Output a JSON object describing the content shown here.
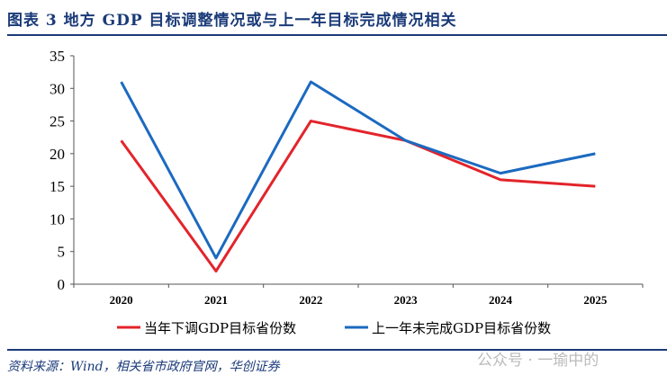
{
  "title": "图表 3   地方 GDP 目标调整情况或与上一年目标完成情况相关",
  "source": "资料来源：Wind，相关省市政府官网，华创证券",
  "watermark": "公众号 · 一瑜中的",
  "chart_data": {
    "type": "line",
    "categories": [
      "2020",
      "2021",
      "2022",
      "2023",
      "2024",
      "2025"
    ],
    "ylim": [
      0,
      35
    ],
    "yticks": [
      0,
      5,
      10,
      15,
      20,
      25,
      30,
      35
    ],
    "grid": false,
    "legend": "bottom",
    "series": [
      {
        "name": "当年下调GDP目标省份数",
        "color": "#e3242b",
        "values": [
          22,
          2,
          25,
          22,
          16,
          15
        ]
      },
      {
        "name": "上一年未完成GDP目标省份数",
        "color": "#1b6ac0",
        "values": [
          31,
          4,
          31,
          22,
          17,
          20
        ]
      }
    ]
  }
}
